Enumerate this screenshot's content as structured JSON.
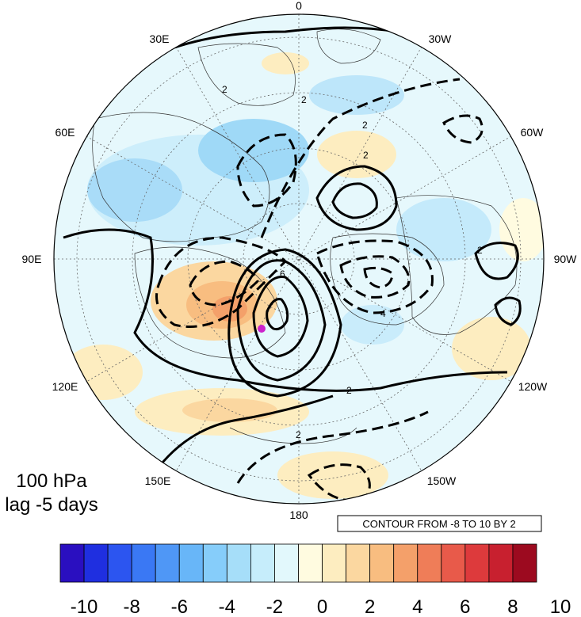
{
  "map": {
    "longitude_labels": {
      "lon_0": "0",
      "lon_30w": "30W",
      "lon_60w": "60W",
      "lon_90w": "90W",
      "lon_120w": "120W",
      "lon_150w": "150W",
      "lon_180": "180",
      "lon_150e": "150E",
      "lon_120e": "120E",
      "lon_90e": "90E",
      "lon_60e": "60E",
      "lon_30e": "30E"
    },
    "contour_labels": [
      "2",
      "2",
      "2",
      "4",
      "6",
      "2",
      "2",
      "2",
      "2"
    ],
    "marker_color": "#cc22cc"
  },
  "caption": {
    "level": "100 hPa",
    "lag": "lag -5 days"
  },
  "contour_info": "CONTOUR FROM -8 TO 10 BY 2",
  "colorbar": {
    "colors": [
      "#2a0fc0",
      "#1f2fe0",
      "#2c55f0",
      "#3a78f4",
      "#4f97f6",
      "#68b6f8",
      "#86cdfa",
      "#a6def9",
      "#c6edfb",
      "#e2f8fc",
      "#fffbe0",
      "#fdedc0",
      "#fbd7a0",
      "#f8bd80",
      "#f4a06a",
      "#ef7d58",
      "#e85a4a",
      "#dd3a3c",
      "#c8202f",
      "#9c0a1f"
    ],
    "tick_labels": [
      "-10",
      "-8",
      "-6",
      "-4",
      "-2",
      "0",
      "2",
      "4",
      "6",
      "8",
      "10"
    ]
  }
}
